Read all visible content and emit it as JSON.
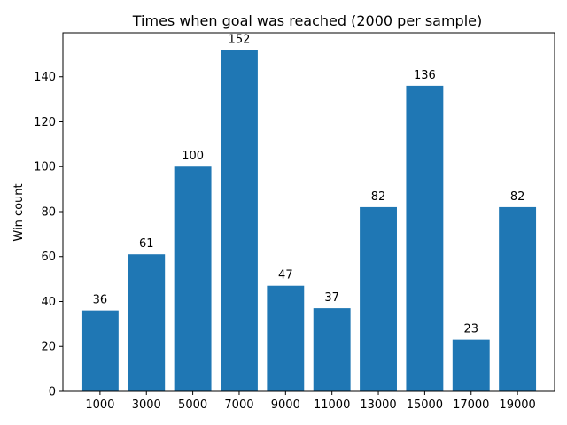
{
  "chart_data": {
    "type": "bar",
    "title": "Times when goal was reached (2000 per sample)",
    "xlabel": "",
    "ylabel": "Win count",
    "categories": [
      "1000",
      "3000",
      "5000",
      "7000",
      "9000",
      "11000",
      "13000",
      "15000",
      "17000",
      "19000"
    ],
    "values": [
      36,
      61,
      100,
      152,
      47,
      37,
      82,
      136,
      23,
      82
    ],
    "data_labels": [
      "36",
      "61",
      "100",
      "152",
      "47",
      "37",
      "82",
      "136",
      "23",
      "82"
    ],
    "yticks": [
      0,
      20,
      40,
      60,
      80,
      100,
      120,
      140
    ],
    "ylim": [
      0,
      159.6
    ],
    "bar_color": "#1f77b4",
    "grid": false,
    "legend": "none"
  }
}
